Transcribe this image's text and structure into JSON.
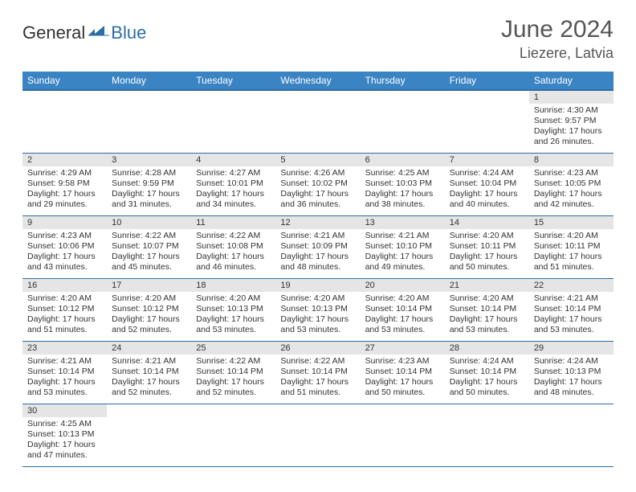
{
  "brand": {
    "general": "General",
    "blue": "Blue"
  },
  "title": "June 2024",
  "location": "Liezere, Latvia",
  "colors": {
    "header_bg": "#3b84c4",
    "header_border": "#2e6ca4",
    "row_divider": "#2e6ca4",
    "daynum_bg": "#e5e5e5",
    "text": "#333333",
    "page_bg": "#ffffff"
  },
  "weekdays": [
    "Sunday",
    "Monday",
    "Tuesday",
    "Wednesday",
    "Thursday",
    "Friday",
    "Saturday"
  ],
  "weeks": [
    [
      null,
      null,
      null,
      null,
      null,
      null,
      {
        "n": "1",
        "sr": "Sunrise: 4:30 AM",
        "ss": "Sunset: 9:57 PM",
        "d1": "Daylight: 17 hours",
        "d2": "and 26 minutes."
      }
    ],
    [
      {
        "n": "2",
        "sr": "Sunrise: 4:29 AM",
        "ss": "Sunset: 9:58 PM",
        "d1": "Daylight: 17 hours",
        "d2": "and 29 minutes."
      },
      {
        "n": "3",
        "sr": "Sunrise: 4:28 AM",
        "ss": "Sunset: 9:59 PM",
        "d1": "Daylight: 17 hours",
        "d2": "and 31 minutes."
      },
      {
        "n": "4",
        "sr": "Sunrise: 4:27 AM",
        "ss": "Sunset: 10:01 PM",
        "d1": "Daylight: 17 hours",
        "d2": "and 34 minutes."
      },
      {
        "n": "5",
        "sr": "Sunrise: 4:26 AM",
        "ss": "Sunset: 10:02 PM",
        "d1": "Daylight: 17 hours",
        "d2": "and 36 minutes."
      },
      {
        "n": "6",
        "sr": "Sunrise: 4:25 AM",
        "ss": "Sunset: 10:03 PM",
        "d1": "Daylight: 17 hours",
        "d2": "and 38 minutes."
      },
      {
        "n": "7",
        "sr": "Sunrise: 4:24 AM",
        "ss": "Sunset: 10:04 PM",
        "d1": "Daylight: 17 hours",
        "d2": "and 40 minutes."
      },
      {
        "n": "8",
        "sr": "Sunrise: 4:23 AM",
        "ss": "Sunset: 10:05 PM",
        "d1": "Daylight: 17 hours",
        "d2": "and 42 minutes."
      }
    ],
    [
      {
        "n": "9",
        "sr": "Sunrise: 4:23 AM",
        "ss": "Sunset: 10:06 PM",
        "d1": "Daylight: 17 hours",
        "d2": "and 43 minutes."
      },
      {
        "n": "10",
        "sr": "Sunrise: 4:22 AM",
        "ss": "Sunset: 10:07 PM",
        "d1": "Daylight: 17 hours",
        "d2": "and 45 minutes."
      },
      {
        "n": "11",
        "sr": "Sunrise: 4:22 AM",
        "ss": "Sunset: 10:08 PM",
        "d1": "Daylight: 17 hours",
        "d2": "and 46 minutes."
      },
      {
        "n": "12",
        "sr": "Sunrise: 4:21 AM",
        "ss": "Sunset: 10:09 PM",
        "d1": "Daylight: 17 hours",
        "d2": "and 48 minutes."
      },
      {
        "n": "13",
        "sr": "Sunrise: 4:21 AM",
        "ss": "Sunset: 10:10 PM",
        "d1": "Daylight: 17 hours",
        "d2": "and 49 minutes."
      },
      {
        "n": "14",
        "sr": "Sunrise: 4:20 AM",
        "ss": "Sunset: 10:11 PM",
        "d1": "Daylight: 17 hours",
        "d2": "and 50 minutes."
      },
      {
        "n": "15",
        "sr": "Sunrise: 4:20 AM",
        "ss": "Sunset: 10:11 PM",
        "d1": "Daylight: 17 hours",
        "d2": "and 51 minutes."
      }
    ],
    [
      {
        "n": "16",
        "sr": "Sunrise: 4:20 AM",
        "ss": "Sunset: 10:12 PM",
        "d1": "Daylight: 17 hours",
        "d2": "and 51 minutes."
      },
      {
        "n": "17",
        "sr": "Sunrise: 4:20 AM",
        "ss": "Sunset: 10:12 PM",
        "d1": "Daylight: 17 hours",
        "d2": "and 52 minutes."
      },
      {
        "n": "18",
        "sr": "Sunrise: 4:20 AM",
        "ss": "Sunset: 10:13 PM",
        "d1": "Daylight: 17 hours",
        "d2": "and 53 minutes."
      },
      {
        "n": "19",
        "sr": "Sunrise: 4:20 AM",
        "ss": "Sunset: 10:13 PM",
        "d1": "Daylight: 17 hours",
        "d2": "and 53 minutes."
      },
      {
        "n": "20",
        "sr": "Sunrise: 4:20 AM",
        "ss": "Sunset: 10:14 PM",
        "d1": "Daylight: 17 hours",
        "d2": "and 53 minutes."
      },
      {
        "n": "21",
        "sr": "Sunrise: 4:20 AM",
        "ss": "Sunset: 10:14 PM",
        "d1": "Daylight: 17 hours",
        "d2": "and 53 minutes."
      },
      {
        "n": "22",
        "sr": "Sunrise: 4:21 AM",
        "ss": "Sunset: 10:14 PM",
        "d1": "Daylight: 17 hours",
        "d2": "and 53 minutes."
      }
    ],
    [
      {
        "n": "23",
        "sr": "Sunrise: 4:21 AM",
        "ss": "Sunset: 10:14 PM",
        "d1": "Daylight: 17 hours",
        "d2": "and 53 minutes."
      },
      {
        "n": "24",
        "sr": "Sunrise: 4:21 AM",
        "ss": "Sunset: 10:14 PM",
        "d1": "Daylight: 17 hours",
        "d2": "and 52 minutes."
      },
      {
        "n": "25",
        "sr": "Sunrise: 4:22 AM",
        "ss": "Sunset: 10:14 PM",
        "d1": "Daylight: 17 hours",
        "d2": "and 52 minutes."
      },
      {
        "n": "26",
        "sr": "Sunrise: 4:22 AM",
        "ss": "Sunset: 10:14 PM",
        "d1": "Daylight: 17 hours",
        "d2": "and 51 minutes."
      },
      {
        "n": "27",
        "sr": "Sunrise: 4:23 AM",
        "ss": "Sunset: 10:14 PM",
        "d1": "Daylight: 17 hours",
        "d2": "and 50 minutes."
      },
      {
        "n": "28",
        "sr": "Sunrise: 4:24 AM",
        "ss": "Sunset: 10:14 PM",
        "d1": "Daylight: 17 hours",
        "d2": "and 50 minutes."
      },
      {
        "n": "29",
        "sr": "Sunrise: 4:24 AM",
        "ss": "Sunset: 10:13 PM",
        "d1": "Daylight: 17 hours",
        "d2": "and 48 minutes."
      }
    ],
    [
      {
        "n": "30",
        "sr": "Sunrise: 4:25 AM",
        "ss": "Sunset: 10:13 PM",
        "d1": "Daylight: 17 hours",
        "d2": "and 47 minutes."
      },
      null,
      null,
      null,
      null,
      null,
      null
    ]
  ]
}
